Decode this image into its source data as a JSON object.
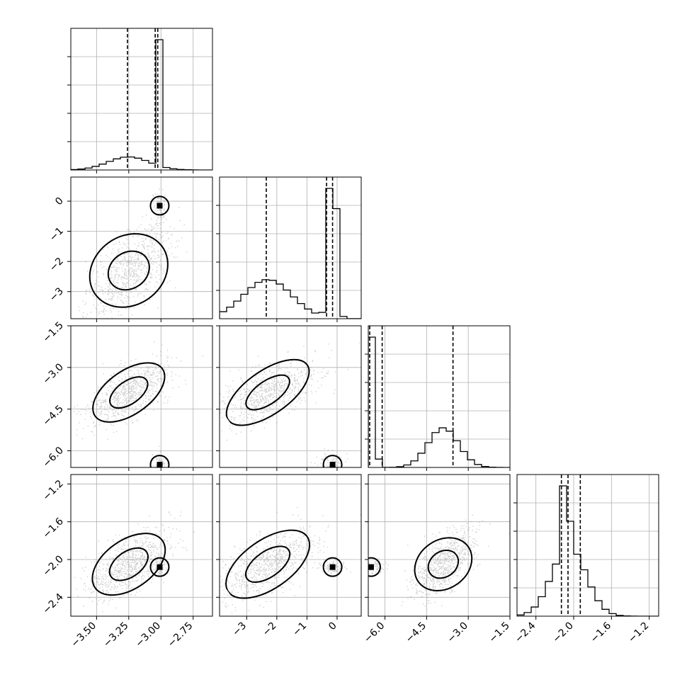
{
  "chart_data": {
    "type": "corner",
    "parameters": [
      {
        "ticks": [
          -3.5,
          -3.25,
          -3.0,
          -2.75
        ],
        "tick_labels": [
          "−3.50",
          "−3.25",
          "−3.00",
          "−2.75"
        ],
        "range": [
          -3.7,
          -2.6
        ],
        "mode": {
          "center": -3.01,
          "width": 0.012,
          "weight": 0.45
        },
        "broad": {
          "center": -3.25,
          "sd": 0.16
        },
        "quantiles": [
          -3.26,
          -3.045,
          -3.025
        ]
      },
      {
        "ticks": [
          -3,
          -2,
          -1,
          0
        ],
        "tick_labels": [
          "−3",
          "−2",
          "−1",
          "0"
        ],
        "range": [
          -3.9,
          0.8
        ],
        "mode": {
          "center": -0.15,
          "width": 0.12,
          "weight": 0.45
        },
        "broad": {
          "center": -2.3,
          "sd": 0.8
        },
        "quantiles": [
          -2.35,
          -0.35,
          -0.15
        ]
      },
      {
        "ticks": [
          -6.0,
          -4.5,
          -3.0,
          -1.5
        ],
        "tick_labels": [
          "−6.0",
          "−4.5",
          "−3.0",
          "−1.5"
        ],
        "range": [
          -6.6,
          -1.5
        ],
        "mode": {
          "center": -6.5,
          "width": 0.12,
          "weight": 0.45
        },
        "broad": {
          "center": -3.9,
          "sd": 0.55
        },
        "quantiles": [
          -6.55,
          -6.1,
          -3.55
        ]
      },
      {
        "ticks": [
          -2.4,
          -2.0,
          -1.6,
          -1.2
        ],
        "tick_labels": [
          "−2.4",
          "−2.0",
          "−1.6",
          "−1.2"
        ],
        "range": [
          -2.6,
          -1.1
        ],
        "mode": {
          "center": -2.08,
          "width": 0.02,
          "weight": 0.3
        },
        "broad": {
          "center": -2.05,
          "sd": 0.18
        },
        "quantiles": [
          -2.13,
          -2.06,
          -1.93
        ]
      }
    ],
    "grid": true
  }
}
